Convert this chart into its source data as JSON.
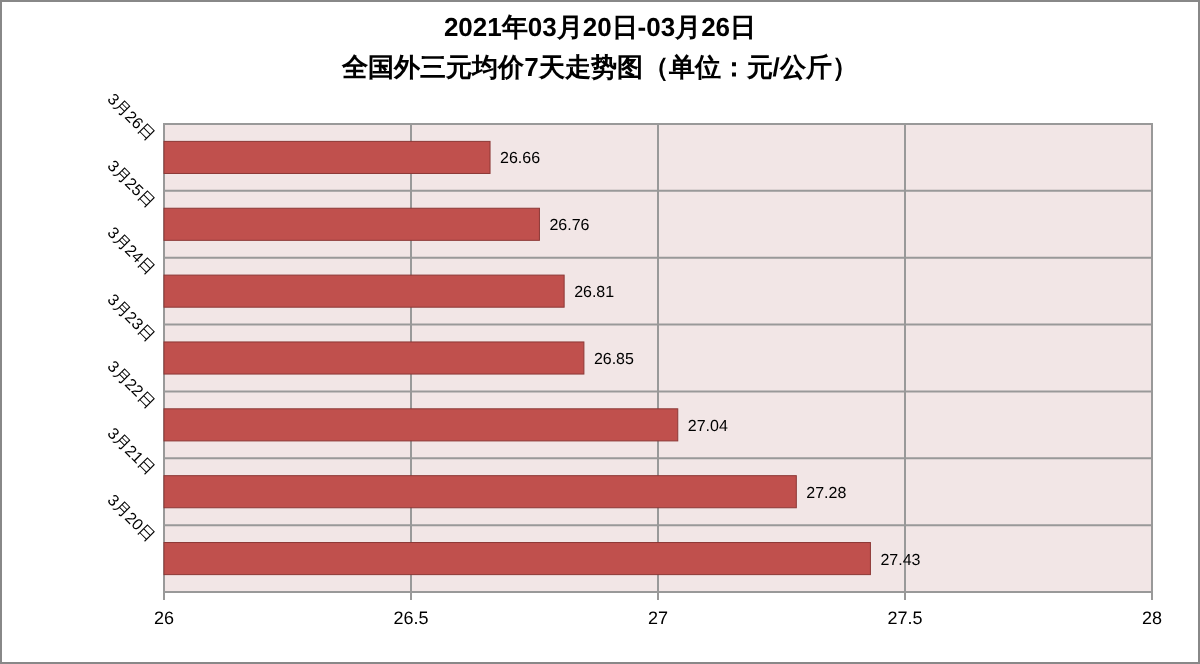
{
  "chart_data": {
    "type": "bar",
    "orientation": "horizontal",
    "title": "2021年03月20日-03月26日",
    "subtitle": "全国外三元均价7天走势图（单位：元/公斤）",
    "categories": [
      "3月26日",
      "3月25日",
      "3月24日",
      "3月23日",
      "3月22日",
      "3月21日",
      "3月20日"
    ],
    "values": [
      26.66,
      26.76,
      26.81,
      26.85,
      27.04,
      27.28,
      27.43
    ],
    "color": "#c0504d",
    "xlim": [
      26,
      28
    ],
    "xticks": [
      26,
      26.5,
      27,
      27.5,
      28
    ],
    "grid": true,
    "data_labels": true
  }
}
